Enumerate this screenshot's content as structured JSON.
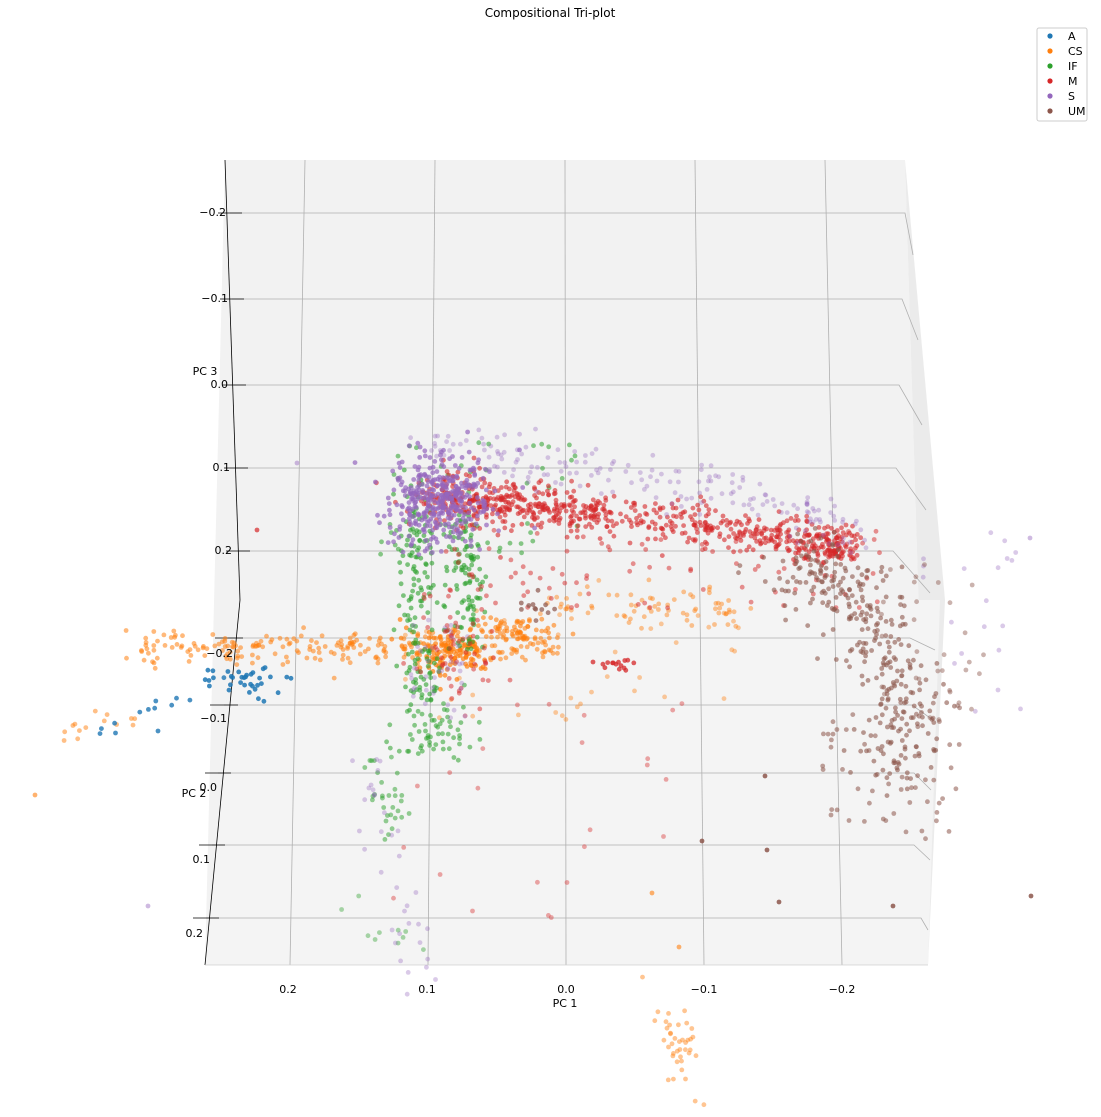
{
  "chart_data": {
    "type": "scatter",
    "projection": "3d",
    "title": "Compositional Tri-plot",
    "xlabel": "PC 1",
    "ylabel": "PC 2",
    "zlabel": "PC 3",
    "x_ticks": [
      "0.2",
      "0.1",
      "0.0",
      "−0.1",
      "−0.2"
    ],
    "y_ticks": [
      "−0.2",
      "−0.1",
      "0.0",
      "0.1",
      "0.2"
    ],
    "z_ticks": [
      "−0.2",
      "−0.1",
      "0.0",
      "0.1",
      "0.2"
    ],
    "xlim": [
      0.26,
      -0.26
    ],
    "ylim": [
      -0.26,
      0.26
    ],
    "zlim": [
      -0.26,
      0.26
    ],
    "x_inverted": true,
    "z_inverted": true,
    "grid": true,
    "legend_position": "top-right",
    "series": [
      {
        "name": "A",
        "color": "#1f77b4",
        "cluster": "left end of the bottom plane, PC1 around 0.2 to 0.3, few dozen points"
      },
      {
        "name": "CS",
        "color": "#ff7f0e",
        "cluster": "horizontal band from PC1 0.3 to -0.1 near PC2 -0.15, plus scattered points below"
      },
      {
        "name": "IF",
        "color": "#2ca02c",
        "cluster": "vertical column around PC1 0.09, spanning PC3 0.1 to 0.2 and PC2 down to 0.2"
      },
      {
        "name": "M",
        "color": "#d62728",
        "cluster": "dense arc from PC1 0.1 to -0.22 near PC3 0.1 to 0.2"
      },
      {
        "name": "S",
        "color": "#9467bd",
        "cluster": "dense blob at PC1 about 0.1, PC3 about 0.12, with sparse outliers"
      },
      {
        "name": "UM",
        "color": "#8c564b",
        "cluster": "cloud at PC1 -0.2 to -0.28 dropping down toward PC2 0.1"
      }
    ]
  }
}
